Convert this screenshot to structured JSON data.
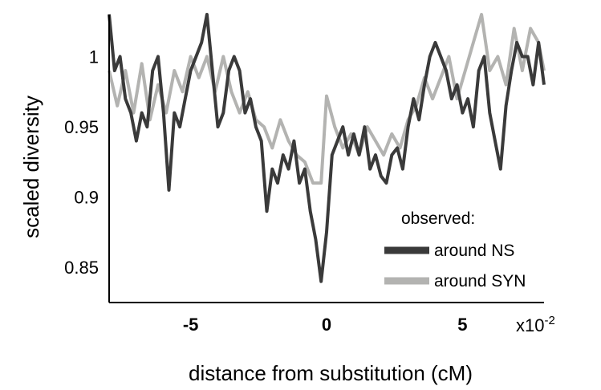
{
  "chart_data": {
    "type": "line",
    "title": "",
    "xlabel": "distance from substitution (cM)",
    "ylabel": "scaled diversity",
    "x_scale_label": "x10",
    "x_scale_exponent": "-2",
    "xlim": [
      -8,
      8
    ],
    "ylim": [
      0.825,
      1.03
    ],
    "x_ticks": [
      {
        "value": -5,
        "label": "-5"
      },
      {
        "value": 0,
        "label": "0"
      },
      {
        "value": 5,
        "label": "5"
      }
    ],
    "y_ticks": [
      {
        "value": 0.85,
        "label": "0.85"
      },
      {
        "value": 0.9,
        "label": "0.9"
      },
      {
        "value": 0.95,
        "label": "0.95"
      },
      {
        "value": 1,
        "label": "1"
      }
    ],
    "grid": false,
    "legend": {
      "title": "observed:",
      "position": "bottom-right"
    },
    "series": [
      {
        "name": "around SYN",
        "color": "#b3b3b1",
        "points": [
          [
            -8.0,
            0.99
          ],
          [
            -7.7,
            0.965
          ],
          [
            -7.4,
            0.99
          ],
          [
            -7.1,
            0.96
          ],
          [
            -6.8,
            0.995
          ],
          [
            -6.5,
            0.955
          ],
          [
            -6.2,
            0.98
          ],
          [
            -5.9,
            0.96
          ],
          [
            -5.6,
            0.99
          ],
          [
            -5.3,
            0.975
          ],
          [
            -5.0,
            1.0
          ],
          [
            -4.7,
            0.985
          ],
          [
            -4.4,
            1.0
          ],
          [
            -4.1,
            0.975
          ],
          [
            -3.8,
            1.0
          ],
          [
            -3.5,
            0.975
          ],
          [
            -3.2,
            0.96
          ],
          [
            -2.9,
            0.975
          ],
          [
            -2.6,
            0.955
          ],
          [
            -2.3,
            0.95
          ],
          [
            -2.0,
            0.935
          ],
          [
            -1.7,
            0.955
          ],
          [
            -1.4,
            0.94
          ],
          [
            -1.1,
            0.93
          ],
          [
            -0.8,
            0.925
          ],
          [
            -0.5,
            0.91
          ],
          [
            -0.2,
            0.91
          ],
          [
            0.0,
            0.972
          ],
          [
            0.3,
            0.95
          ],
          [
            0.6,
            0.935
          ],
          [
            0.9,
            0.945
          ],
          [
            1.2,
            0.93
          ],
          [
            1.5,
            0.95
          ],
          [
            1.8,
            0.94
          ],
          [
            2.1,
            0.93
          ],
          [
            2.4,
            0.945
          ],
          [
            2.7,
            0.935
          ],
          [
            3.0,
            0.955
          ],
          [
            3.3,
            0.965
          ],
          [
            3.6,
            0.985
          ],
          [
            3.9,
            0.97
          ],
          [
            4.2,
            0.985
          ],
          [
            4.5,
            1.0
          ],
          [
            4.8,
            0.97
          ],
          [
            5.1,
            0.99
          ],
          [
            5.4,
            1.01
          ],
          [
            5.7,
            1.03
          ],
          [
            6.0,
            0.99
          ],
          [
            6.3,
            1.0
          ],
          [
            6.6,
            0.98
          ],
          [
            6.9,
            1.02
          ],
          [
            7.2,
            0.99
          ],
          [
            7.5,
            1.02
          ],
          [
            7.8,
            1.01
          ],
          [
            8.0,
            0.99
          ]
        ]
      },
      {
        "name": "around NS",
        "color": "#3a3a3a",
        "points": [
          [
            -8.0,
            1.03
          ],
          [
            -7.8,
            0.99
          ],
          [
            -7.6,
            1.0
          ],
          [
            -7.4,
            0.97
          ],
          [
            -7.2,
            0.96
          ],
          [
            -7.0,
            0.94
          ],
          [
            -6.8,
            0.96
          ],
          [
            -6.6,
            0.95
          ],
          [
            -6.4,
            0.99
          ],
          [
            -6.2,
            1.0
          ],
          [
            -6.0,
            0.96
          ],
          [
            -5.8,
            0.905
          ],
          [
            -5.6,
            0.96
          ],
          [
            -5.4,
            0.95
          ],
          [
            -5.2,
            0.97
          ],
          [
            -5.0,
            0.99
          ],
          [
            -4.8,
            1.0
          ],
          [
            -4.6,
            1.01
          ],
          [
            -4.4,
            1.03
          ],
          [
            -4.2,
            0.99
          ],
          [
            -4.0,
            0.95
          ],
          [
            -3.8,
            0.96
          ],
          [
            -3.6,
            0.99
          ],
          [
            -3.4,
            1.0
          ],
          [
            -3.2,
            0.99
          ],
          [
            -3.0,
            0.96
          ],
          [
            -2.8,
            0.97
          ],
          [
            -2.6,
            0.95
          ],
          [
            -2.4,
            0.94
          ],
          [
            -2.2,
            0.89
          ],
          [
            -2.0,
            0.92
          ],
          [
            -1.8,
            0.91
          ],
          [
            -1.6,
            0.93
          ],
          [
            -1.4,
            0.92
          ],
          [
            -1.2,
            0.94
          ],
          [
            -1.0,
            0.91
          ],
          [
            -0.8,
            0.92
          ],
          [
            -0.6,
            0.89
          ],
          [
            -0.4,
            0.87
          ],
          [
            -0.2,
            0.84
          ],
          [
            0.0,
            0.875
          ],
          [
            0.2,
            0.93
          ],
          [
            0.4,
            0.94
          ],
          [
            0.6,
            0.95
          ],
          [
            0.8,
            0.93
          ],
          [
            1.0,
            0.945
          ],
          [
            1.2,
            0.93
          ],
          [
            1.4,
            0.95
          ],
          [
            1.6,
            0.92
          ],
          [
            1.8,
            0.93
          ],
          [
            2.0,
            0.915
          ],
          [
            2.2,
            0.91
          ],
          [
            2.4,
            0.93
          ],
          [
            2.6,
            0.935
          ],
          [
            2.8,
            0.92
          ],
          [
            3.0,
            0.95
          ],
          [
            3.2,
            0.97
          ],
          [
            3.4,
            0.955
          ],
          [
            3.6,
            0.98
          ],
          [
            3.8,
            1.0
          ],
          [
            4.0,
            1.01
          ],
          [
            4.2,
            1.0
          ],
          [
            4.4,
            0.99
          ],
          [
            4.6,
            0.97
          ],
          [
            4.8,
            0.98
          ],
          [
            5.0,
            0.96
          ],
          [
            5.2,
            0.97
          ],
          [
            5.4,
            0.95
          ],
          [
            5.6,
            0.99
          ],
          [
            5.8,
            1.0
          ],
          [
            6.0,
            0.96
          ],
          [
            6.2,
            0.94
          ],
          [
            6.4,
            0.92
          ],
          [
            6.6,
            0.965
          ],
          [
            6.8,
            0.99
          ],
          [
            7.0,
            1.01
          ],
          [
            7.2,
            1.0
          ],
          [
            7.4,
            1.0
          ],
          [
            7.6,
            0.98
          ],
          [
            7.8,
            1.01
          ],
          [
            8.0,
            0.98
          ]
        ]
      }
    ]
  }
}
